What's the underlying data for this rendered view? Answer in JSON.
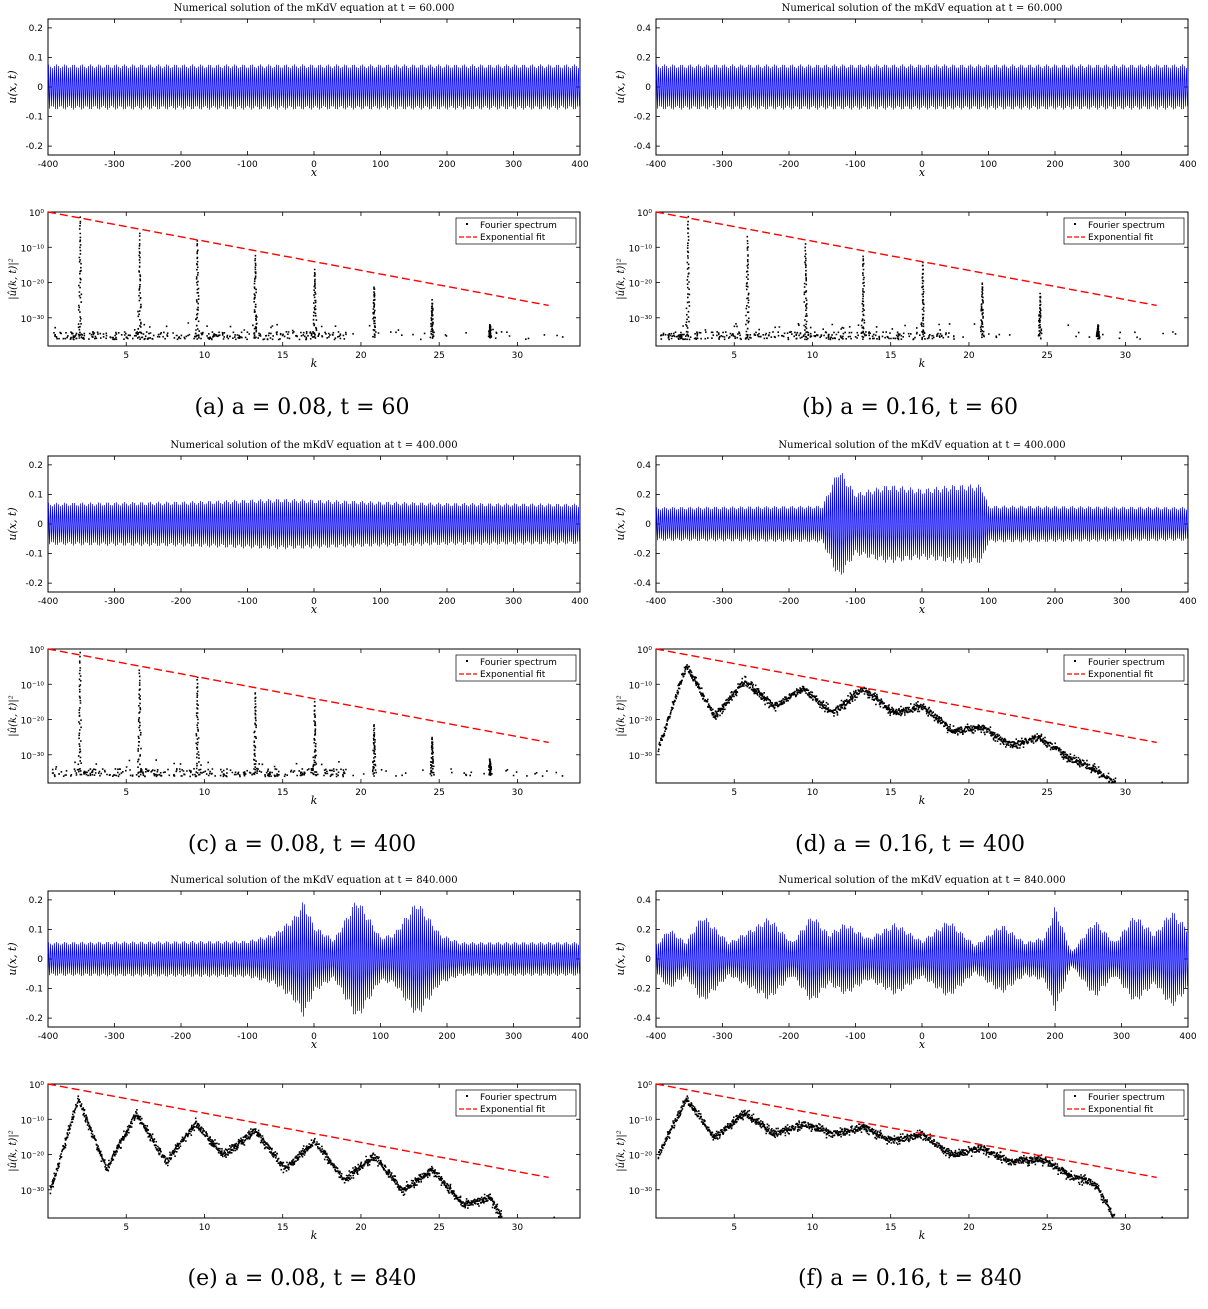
{
  "legend": {
    "spectrum": "Fourier spectrum",
    "fit": "Exponential fit"
  },
  "colors": {
    "wave": "#0000ff",
    "fit": "#ff0000",
    "dots": "#000000"
  },
  "common": {
    "title_prefix": "Numerical solution of the mKdV equation at t = ",
    "wave_xlabel": "x",
    "wave_ylabel": "u(x, t)",
    "spec_xlabel": "k",
    "spec_ylabel": "|û(k, t)|²",
    "wave_xticks": [
      "-400",
      "-300",
      "-200",
      "-100",
      "0",
      "100",
      "200",
      "300",
      "400"
    ],
    "spec_xticks": [
      "5",
      "10",
      "15",
      "20",
      "25",
      "30"
    ],
    "spec_yticks": [
      "10⁰",
      "10⁻¹⁰",
      "10⁻²⁰",
      "10⁻³⁰"
    ]
  },
  "panels": [
    {
      "id": "a",
      "caption": "(a) a = 0.08, t = 60",
      "t": "60.000",
      "wave_yticks": [
        "0.2",
        "0.1",
        "0",
        "-0.1",
        "-0.2"
      ],
      "wave_ylim": [
        -0.23,
        0.23
      ]
    },
    {
      "id": "b",
      "caption": "(b) a = 0.16, t = 60",
      "t": "60.000",
      "wave_yticks": [
        "0.4",
        "0.2",
        "0",
        "-0.2",
        "-0.4"
      ],
      "wave_ylim": [
        -0.46,
        0.46
      ]
    },
    {
      "id": "c",
      "caption": "(c) a = 0.08, t = 400",
      "t": "400.000",
      "wave_yticks": [
        "0.2",
        "0.1",
        "0",
        "-0.1",
        "-0.2"
      ],
      "wave_ylim": [
        -0.23,
        0.23
      ]
    },
    {
      "id": "d",
      "caption": "(d) a = 0.16, t = 400",
      "t": "400.000",
      "wave_yticks": [
        "0.4",
        "0.2",
        "0",
        "-0.2",
        "-0.4"
      ],
      "wave_ylim": [
        -0.46,
        0.46
      ]
    },
    {
      "id": "e",
      "caption": "(e) a = 0.08, t = 840",
      "t": "840.000",
      "wave_yticks": [
        "0.2",
        "0.1",
        "0",
        "-0.1",
        "-0.2"
      ],
      "wave_ylim": [
        -0.23,
        0.23
      ]
    },
    {
      "id": "f",
      "caption": "(f) a = 0.16, t = 840",
      "t": "840.000",
      "wave_yticks": [
        "0.4",
        "0.2",
        "0",
        "-0.2",
        "-0.4"
      ],
      "wave_ylim": [
        -0.46,
        0.46
      ]
    }
  ],
  "chart_data": [
    {
      "panel": "a",
      "type": "line",
      "title": "Numerical solution of the mKdV equation at t = 60.000",
      "xlabel": "x",
      "ylabel": "u(x, t)",
      "xlim": [
        -400,
        400
      ],
      "ylim": [
        -0.23,
        0.23
      ],
      "envelope": {
        "x": [
          -400,
          -200,
          0,
          200,
          400
        ],
        "amp": [
          0.08,
          0.08,
          0.08,
          0.08,
          0.08
        ]
      }
    },
    {
      "panel": "a",
      "type": "scatter",
      "xlabel": "k",
      "ylabel": "|û(k, t)|²",
      "xlim": [
        0,
        34
      ],
      "yscale": "log",
      "spectrum_peaks": {
        "k": [
          2.0,
          5.8,
          9.5,
          13.2,
          17.0,
          20.8,
          24.5,
          28.2
        ],
        "log10_peak": [
          -1,
          -6,
          -8,
          -12,
          -16,
          -21,
          -25,
          -32
        ]
      },
      "noise_floor_log10": -35.5,
      "exponential_fit": {
        "k": [
          0,
          32
        ],
        "log10_y": [
          0,
          -26.5
        ]
      }
    },
    {
      "panel": "b",
      "type": "line",
      "title": "Numerical solution of the mKdV equation at t = 60.000",
      "xlabel": "x",
      "ylabel": "u(x, t)",
      "xlim": [
        -400,
        400
      ],
      "ylim": [
        -0.46,
        0.46
      ],
      "envelope": {
        "x": [
          -400,
          -200,
          0,
          200,
          400
        ],
        "amp": [
          0.16,
          0.16,
          0.16,
          0.16,
          0.16
        ]
      }
    },
    {
      "panel": "b",
      "type": "scatter",
      "xlabel": "k",
      "ylabel": "|û(k, t)|²",
      "xlim": [
        0,
        34
      ],
      "yscale": "log",
      "spectrum_peaks": {
        "k": [
          2.0,
          5.8,
          9.5,
          13.2,
          17.0,
          20.8,
          24.5,
          28.2
        ],
        "log10_peak": [
          -1,
          -7,
          -9,
          -12,
          -14,
          -20,
          -23,
          -32
        ]
      },
      "noise_floor_log10": -35.5,
      "exponential_fit": {
        "k": [
          0,
          32
        ],
        "log10_y": [
          0,
          -26.5
        ]
      }
    },
    {
      "panel": "c",
      "type": "line",
      "title": "Numerical solution of the mKdV equation at t = 400.000",
      "xlabel": "x",
      "ylabel": "u(x, t)",
      "xlim": [
        -400,
        400
      ],
      "ylim": [
        -0.23,
        0.23
      ],
      "envelope": {
        "x": [
          -400,
          -200,
          -50,
          100,
          200,
          400
        ],
        "amp": [
          0.075,
          0.08,
          0.09,
          0.08,
          0.075,
          0.072
        ]
      }
    },
    {
      "panel": "c",
      "type": "scatter",
      "xlabel": "k",
      "ylabel": "|û(k, t)|²",
      "xlim": [
        0,
        34
      ],
      "yscale": "log",
      "spectrum_peaks": {
        "k": [
          2.0,
          5.8,
          9.5,
          13.2,
          17.0,
          20.8,
          24.5,
          28.2
        ],
        "log10_peak": [
          -1,
          -6,
          -8,
          -12,
          -15,
          -21,
          -25,
          -31
        ]
      },
      "noise_floor_log10": -35.5,
      "exponential_fit": {
        "k": [
          0,
          32
        ],
        "log10_y": [
          0,
          -26.5
        ]
      }
    },
    {
      "panel": "d",
      "type": "line",
      "title": "Numerical solution of the mKdV equation at t = 400.000",
      "xlabel": "x",
      "ylabel": "u(x, t)",
      "xlim": [
        -400,
        400
      ],
      "ylim": [
        -0.46,
        0.46
      ],
      "envelope": {
        "x": [
          -400,
          -150,
          -125,
          -100,
          -50,
          0,
          50,
          90,
          100,
          150,
          400
        ],
        "amp": [
          0.12,
          0.13,
          0.4,
          0.22,
          0.28,
          0.25,
          0.28,
          0.28,
          0.13,
          0.13,
          0.12
        ]
      }
    },
    {
      "panel": "d",
      "type": "scatter",
      "xlabel": "k",
      "ylabel": "|û(k, t)|²",
      "xlim": [
        0,
        34
      ],
      "yscale": "log",
      "spectrum_curve": {
        "k": [
          0.1,
          1.9,
          3.7,
          5.6,
          7.5,
          9.4,
          11.2,
          13.2,
          15.1,
          17.0,
          18.9,
          20.8,
          22.6,
          24.5,
          26.5,
          28.0,
          29.3
        ],
        "log10_y": [
          -28,
          -4.5,
          -19,
          -9,
          -16,
          -11,
          -18,
          -11,
          -18,
          -16,
          -23,
          -22,
          -27,
          -25,
          -31,
          -34,
          -38
        ]
      },
      "exponential_fit": {
        "k": [
          0,
          32
        ],
        "log10_y": [
          0,
          -26.5
        ]
      }
    },
    {
      "panel": "e",
      "type": "line",
      "title": "Numerical solution of the mKdV equation at t = 840.000",
      "xlabel": "x",
      "ylabel": "u(x, t)",
      "xlim": [
        -400,
        400
      ],
      "ylim": [
        -0.23,
        0.23
      ],
      "envelope": {
        "x": [
          -400,
          -100,
          -60,
          -30,
          -15,
          0,
          30,
          65,
          100,
          120,
          155,
          190,
          220,
          400
        ],
        "amp": [
          0.06,
          0.065,
          0.09,
          0.15,
          0.21,
          0.12,
          0.07,
          0.22,
          0.08,
          0.09,
          0.21,
          0.09,
          0.06,
          0.06
        ]
      }
    },
    {
      "panel": "e",
      "type": "scatter",
      "xlabel": "k",
      "ylabel": "|û(k, t)|²",
      "xlim": [
        0,
        34
      ],
      "yscale": "log",
      "spectrum_curve": {
        "k": [
          0.1,
          1.9,
          3.7,
          5.6,
          7.5,
          9.4,
          11.2,
          13.2,
          15.1,
          17.0,
          18.9,
          20.8,
          22.6,
          24.5,
          26.5,
          28.2,
          29.0
        ],
        "log10_y": [
          -30,
          -4,
          -24,
          -8,
          -22,
          -11,
          -20,
          -13,
          -24,
          -16,
          -27,
          -20,
          -30,
          -24,
          -34,
          -32,
          -38
        ]
      },
      "exponential_fit": {
        "k": [
          0,
          32
        ],
        "log10_y": [
          0,
          -26.5
        ]
      }
    },
    {
      "panel": "f",
      "type": "line",
      "title": "Numerical solution of the mKdV equation at t = 840.000",
      "xlabel": "x",
      "ylabel": "u(x, t)",
      "xlim": [
        -400,
        400
      ],
      "ylim": [
        -0.46,
        0.46
      ],
      "envelope": {
        "x": [
          -400,
          -380,
          -355,
          -330,
          -290,
          -255,
          -230,
          -195,
          -165,
          -140,
          -115,
          -80,
          -40,
          0,
          40,
          80,
          120,
          155,
          185,
          200,
          225,
          260,
          290,
          320,
          350,
          375,
          400
        ],
        "amp": [
          0.1,
          0.22,
          0.12,
          0.32,
          0.12,
          0.22,
          0.3,
          0.12,
          0.32,
          0.18,
          0.26,
          0.15,
          0.26,
          0.13,
          0.28,
          0.1,
          0.25,
          0.12,
          0.16,
          0.38,
          0.05,
          0.28,
          0.12,
          0.32,
          0.18,
          0.35,
          0.22
        ]
      }
    },
    {
      "panel": "f",
      "type": "scatter",
      "xlabel": "k",
      "ylabel": "|û(k, t)|²",
      "xlim": [
        0,
        34
      ],
      "yscale": "log",
      "spectrum_curve": {
        "k": [
          0.1,
          1.9,
          3.7,
          5.6,
          7.5,
          9.4,
          11.2,
          13.2,
          15.1,
          17.0,
          18.9,
          20.8,
          22.6,
          24.5,
          26.5,
          28.0,
          29.3
        ],
        "log10_y": [
          -20,
          -4,
          -15,
          -8,
          -14,
          -11,
          -14,
          -12,
          -16,
          -14,
          -20,
          -18,
          -22,
          -21,
          -26,
          -28,
          -38
        ]
      },
      "exponential_fit": {
        "k": [
          0,
          32
        ],
        "log10_y": [
          0,
          -26.5
        ]
      }
    }
  ]
}
